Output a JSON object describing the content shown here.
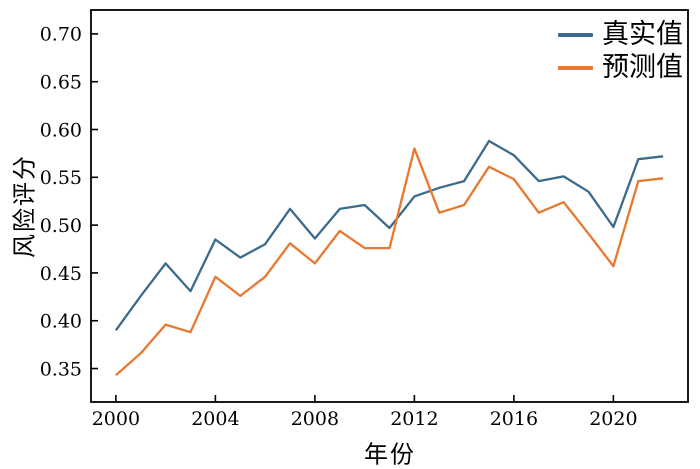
{
  "figure": {
    "background": "#ffffff",
    "text_color": "#000000",
    "spine_color": "#000000"
  },
  "chart_data": {
    "type": "line",
    "title": "",
    "xlabel": "年份",
    "ylabel": "风险评分",
    "grid": false,
    "legend_position": "upper right",
    "xlim": [
      1999.0,
      2023.0
    ],
    "ylim": [
      0.315,
      0.725
    ],
    "xticks": [
      2000,
      2004,
      2008,
      2012,
      2016,
      2020
    ],
    "yticks": [
      0.35,
      0.4,
      0.45,
      0.5,
      0.55,
      0.6,
      0.65,
      0.7
    ],
    "x": [
      2000,
      2001,
      2002,
      2003,
      2004,
      2005,
      2006,
      2007,
      2008,
      2009,
      2010,
      2011,
      2012,
      2013,
      2014,
      2015,
      2016,
      2017,
      2018,
      2019,
      2020,
      2021,
      2022
    ],
    "series": [
      {
        "name": "真实值",
        "color": "#3d6b8c",
        "values": [
          0.39,
          0.426,
          0.46,
          0.431,
          0.485,
          0.466,
          0.48,
          0.517,
          0.486,
          0.517,
          0.521,
          0.497,
          0.53,
          0.539,
          0.546,
          0.588,
          0.573,
          0.546,
          0.551,
          0.535,
          0.498,
          0.569,
          0.572
        ]
      },
      {
        "name": "预测值",
        "color": "#e8782f",
        "values": [
          0.343,
          0.366,
          0.396,
          0.388,
          0.446,
          0.426,
          0.446,
          0.481,
          0.46,
          0.494,
          0.476,
          0.476,
          0.58,
          0.513,
          0.521,
          0.561,
          0.548,
          0.513,
          0.524,
          0.491,
          0.457,
          0.546,
          0.549
        ]
      }
    ]
  }
}
